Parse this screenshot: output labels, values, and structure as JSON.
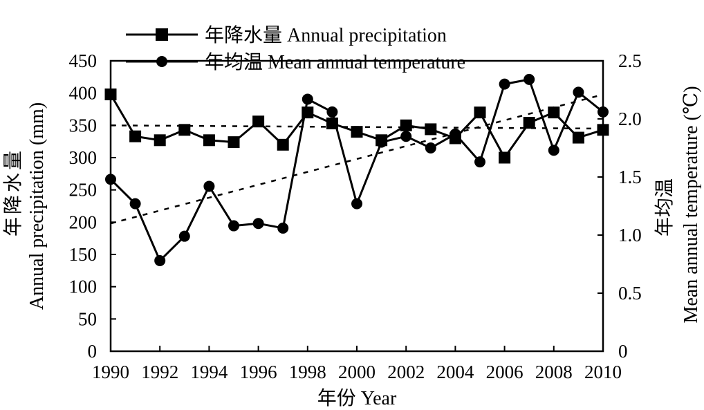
{
  "chart_data": {
    "type": "line",
    "x": [
      1990,
      1991,
      1992,
      1993,
      1994,
      1995,
      1996,
      1997,
      1998,
      1999,
      2000,
      2001,
      2002,
      2003,
      2004,
      2005,
      2006,
      2007,
      2008,
      2009,
      2010
    ],
    "series": [
      {
        "name": "年降水量 Annual precipitation",
        "axis": "left",
        "marker": "square",
        "values": [
          398,
          333,
          327,
          343,
          327,
          324,
          356,
          320,
          370,
          353,
          340,
          327,
          350,
          344,
          330,
          370,
          300,
          354,
          370,
          331,
          343
        ],
        "trend": [
          350,
          345
        ]
      },
      {
        "name": "年均温 Mean annual temperature",
        "axis": "right",
        "marker": "circle",
        "values": [
          1.48,
          1.27,
          0.78,
          0.99,
          1.42,
          1.08,
          1.1,
          1.06,
          2.17,
          2.06,
          1.27,
          1.8,
          1.85,
          1.75,
          1.87,
          1.63,
          2.3,
          2.34,
          1.73,
          2.23,
          2.06
        ],
        "trend": [
          1.1,
          2.21
        ]
      }
    ],
    "xlabel": "年份 Year",
    "ylabel_left": {
      "cn": "年降水量",
      "en": "Annual precipitation (mm)"
    },
    "ylabel_right": {
      "cn": "年均温",
      "en": "Mean annual temperature (℃)"
    },
    "ylim_left": [
      0,
      450
    ],
    "ylim_right": [
      0,
      2.5
    ],
    "x_ticks": [
      "1990",
      "1992",
      "1994",
      "1996",
      "1998",
      "2000",
      "2002",
      "2004",
      "2006",
      "2008",
      "2010"
    ],
    "y_ticks_left": [
      "0",
      "50",
      "100",
      "150",
      "200",
      "250",
      "300",
      "350",
      "400",
      "450"
    ],
    "y_ticks_right": [
      "0",
      "0.5",
      "1.0",
      "1.5",
      "2.0",
      "2.5"
    ],
    "legend_position": "top-center"
  }
}
